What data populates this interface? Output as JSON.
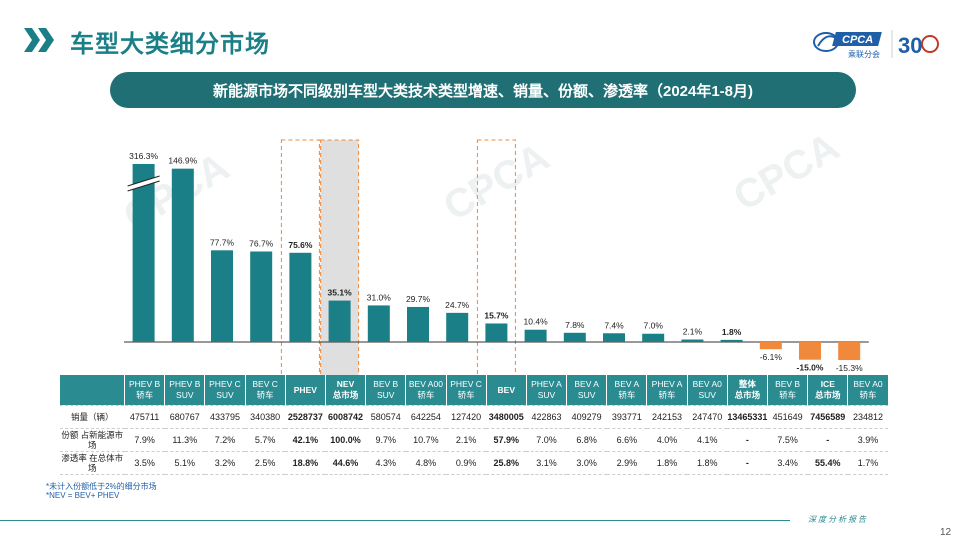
{
  "page": {
    "title": "车型大类细分市场",
    "subtitle": "新能源市场不同级别车型大类技术类型增速、销量、份额、渗透率（2024年1-8月)",
    "page_number": "12",
    "footer_text": "深度分析报告",
    "footnotes": [
      "*未计入份额低于2%的细分市场",
      "*NEV = BEV+ PHEV"
    ],
    "logo_text": "CPCA",
    "logo_sub": "乘联分会",
    "anniversary": "30",
    "watermark": "CPCA"
  },
  "colors": {
    "teal": "#1a7f86",
    "orange": "#f0893b",
    "header_bg": "#2a8b91",
    "highlight": "#d9d9d9"
  },
  "chart_data": {
    "type": "bar",
    "categories": [
      "PHEV B 轿车",
      "PHEV B SUV",
      "PHEV C SUV",
      "BEV C 轿车",
      "PHEV",
      "NEV 总市场",
      "BEV B SUV",
      "BEV A00 轿车",
      "PHEV C 轿车",
      "BEV",
      "PHEV A SUV",
      "BEV A SUV",
      "BEV A 轿车",
      "PHEV A 轿车",
      "BEV A0 SUV",
      "整体 总市场",
      "BEV B 轿车",
      "ICE 总市场",
      "BEV A0 轿车"
    ],
    "values": [
      316.3,
      146.9,
      77.7,
      76.7,
      75.6,
      35.1,
      31.0,
      29.7,
      24.7,
      15.7,
      10.4,
      7.8,
      7.4,
      7.0,
      2.1,
      1.8,
      -6.1,
      -15.0,
      -15.3
    ],
    "value_labels": [
      "316.3%",
      "146.9%",
      "77.7%",
      "76.7%",
      "75.6%",
      "35.1%",
      "31.0%",
      "29.7%",
      "24.7%",
      "15.7%",
      "10.4%",
      "7.8%",
      "7.4%",
      "7.0%",
      "2.1%",
      "1.8%",
      "-6.1%",
      "-15.0%",
      "-15.3%"
    ],
    "bold_labels": [
      4,
      5,
      9,
      15,
      17
    ],
    "broken_axis_bar": 0,
    "highlight_dashed": [
      4,
      9
    ],
    "highlight_shaded": [
      5
    ],
    "ylim": [
      -20,
      160
    ],
    "grid": false
  },
  "table": {
    "header": [
      [
        "PHEV B",
        "轿车"
      ],
      [
        "PHEV B",
        "SUV"
      ],
      [
        "PHEV C",
        "SUV"
      ],
      [
        "BEV C",
        "轿车"
      ],
      [
        "PHEV",
        ""
      ],
      [
        "NEV",
        "总市场"
      ],
      [
        "BEV B",
        "SUV"
      ],
      [
        "BEV A00",
        "轿车"
      ],
      [
        "PHEV C",
        "轿车"
      ],
      [
        "BEV",
        ""
      ],
      [
        "PHEV A",
        "SUV"
      ],
      [
        "BEV A",
        "SUV"
      ],
      [
        "BEV A",
        "轿车"
      ],
      [
        "PHEV A",
        "轿车"
      ],
      [
        "BEV A0",
        "SUV"
      ],
      [
        "整体",
        "总市场"
      ],
      [
        "BEV B",
        "轿车"
      ],
      [
        "ICE",
        "总市场"
      ],
      [
        "BEV A0",
        "轿车"
      ]
    ],
    "rows": [
      {
        "label": "销量（辆）",
        "values": [
          "475711",
          "680767",
          "433795",
          "340380",
          "2528737",
          "6008742",
          "580574",
          "642254",
          "127420",
          "3480005",
          "422863",
          "409279",
          "393771",
          "242153",
          "247470",
          "13465331",
          "451649",
          "7456589",
          "234812"
        ]
      },
      {
        "label": "份额 占新能源市场",
        "values": [
          "7.9%",
          "11.3%",
          "7.2%",
          "5.7%",
          "42.1%",
          "100.0%",
          "9.7%",
          "10.7%",
          "2.1%",
          "57.9%",
          "7.0%",
          "6.8%",
          "6.6%",
          "4.0%",
          "4.1%",
          "-",
          "7.5%",
          "-",
          "3.9%"
        ]
      },
      {
        "label": "渗透率 在总体市场",
        "values": [
          "3.5%",
          "5.1%",
          "3.2%",
          "2.5%",
          "18.8%",
          "44.6%",
          "4.3%",
          "4.8%",
          "0.9%",
          "25.8%",
          "3.1%",
          "3.0%",
          "2.9%",
          "1.8%",
          "1.8%",
          "-",
          "3.4%",
          "55.4%",
          "1.7%"
        ]
      }
    ]
  }
}
